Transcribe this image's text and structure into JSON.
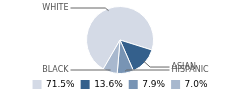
{
  "chart_data": {
    "type": "pie",
    "categories": [
      "WHITE",
      "ASIAN",
      "HISPANIC",
      "BLACK"
    ],
    "values": [
      71.5,
      13.6,
      7.9,
      7.0
    ],
    "value_labels": [
      "71.5%",
      "13.6%",
      "7.9%",
      "7.0%"
    ],
    "colors": [
      "#d4dae6",
      "#34608c",
      "#7894b4",
      "#a8b8ce"
    ],
    "legend": "bottom"
  }
}
